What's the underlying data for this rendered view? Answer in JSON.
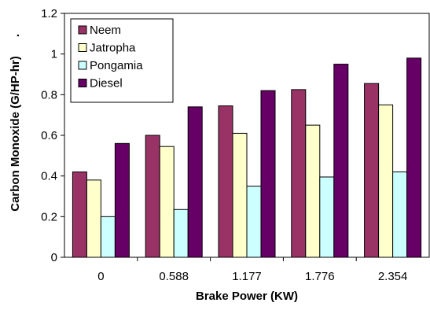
{
  "chart_data": {
    "type": "bar",
    "title": "",
    "xlabel": "Brake Power (KW)",
    "ylabel": "Carbon Monoxide (G/HP-hr)",
    "ylabel_suffix": ".",
    "categories": [
      "0",
      "0.588",
      "1.177",
      "1.776",
      "2.354"
    ],
    "ylim": [
      0,
      1.2
    ],
    "yticks": [
      0,
      0.2,
      0.4,
      0.6,
      0.8,
      1,
      1.2
    ],
    "ytick_labels": [
      "0",
      "0.2",
      "0.4",
      "0.6",
      "0.8",
      "1",
      "1.2"
    ],
    "grid": false,
    "legend_position": "top-left",
    "series": [
      {
        "name": "Neem",
        "color": "#993366",
        "values": [
          0.42,
          0.6,
          0.745,
          0.825,
          0.855
        ]
      },
      {
        "name": "Jatropha",
        "color": "#FFFFCC",
        "values": [
          0.38,
          0.545,
          0.61,
          0.65,
          0.75
        ]
      },
      {
        "name": "Pongamia",
        "color": "#CCFFFF",
        "values": [
          0.2,
          0.235,
          0.35,
          0.395,
          0.42
        ]
      },
      {
        "name": "Diesel",
        "color": "#660066",
        "values": [
          0.56,
          0.74,
          0.82,
          0.95,
          0.98
        ]
      }
    ]
  }
}
